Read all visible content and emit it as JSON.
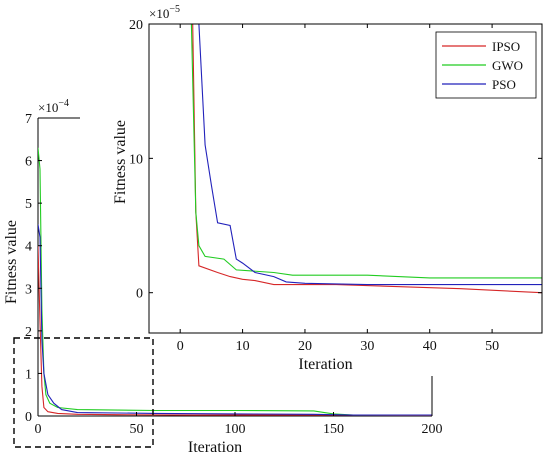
{
  "chart_data": [
    {
      "type": "line",
      "panel": "main",
      "xlabel": "Iteration",
      "ylabel": "Fitness value",
      "exponent_label": "×10",
      "exponent_power": "−4",
      "xlim": [
        0,
        200
      ],
      "ylim": [
        0,
        7
      ],
      "xticks": [
        0,
        50,
        100,
        150,
        200
      ],
      "yticks": [
        0,
        1,
        2,
        3,
        4,
        5,
        6,
        7
      ],
      "grid": false,
      "series": [
        {
          "name": "IPSO",
          "color": "#d62728",
          "x": [
            0,
            1,
            2,
            3,
            5,
            10,
            20,
            40,
            80,
            150,
            200
          ],
          "y": [
            4.0,
            2.2,
            0.7,
            0.2,
            0.1,
            0.06,
            0.04,
            0.03,
            0.02,
            0.02,
            0.01
          ]
        },
        {
          "name": "GWO",
          "color": "#22cc22",
          "x": [
            0,
            1,
            2,
            3,
            4,
            6,
            10,
            20,
            60,
            100,
            140,
            150,
            160,
            200
          ],
          "y": [
            6.3,
            5.8,
            2.5,
            1.0,
            0.5,
            0.3,
            0.2,
            0.15,
            0.13,
            0.13,
            0.12,
            0.05,
            0.02,
            0.02
          ]
        },
        {
          "name": "PSO",
          "color": "#2222bb",
          "x": [
            0,
            1,
            2,
            3,
            5,
            8,
            12,
            20,
            60,
            100,
            140,
            160,
            200
          ],
          "y": [
            4.5,
            4.2,
            1.8,
            1.0,
            0.5,
            0.3,
            0.15,
            0.08,
            0.06,
            0.05,
            0.04,
            0.02,
            0.02
          ]
        }
      ]
    },
    {
      "type": "line",
      "panel": "inset",
      "xlabel": "Iteration",
      "ylabel": "Fitness value",
      "exponent_label": "×10",
      "exponent_power": "−5",
      "xlim": [
        -5,
        58
      ],
      "ylim": [
        -3,
        20
      ],
      "xticks": [
        10,
        20,
        30,
        40,
        50
      ],
      "yticks": [
        0,
        10,
        20
      ],
      "extra_xtick": 0,
      "grid": false,
      "legend": "top-right",
      "series": [
        {
          "name": "IPSO",
          "color": "#d62728",
          "x": [
            2,
            2.5,
            3,
            6,
            8,
            10,
            12,
            15,
            25,
            45,
            58
          ],
          "y": [
            20,
            6,
            2.0,
            1.5,
            1.2,
            1.0,
            0.9,
            0.6,
            0.6,
            0.3,
            0.0
          ]
        },
        {
          "name": "GWO",
          "color": "#22cc22",
          "x": [
            1.8,
            2.5,
            3,
            4,
            7,
            9,
            15,
            18,
            30,
            40,
            58
          ],
          "y": [
            20,
            6,
            3.5,
            2.7,
            2.5,
            1.7,
            1.5,
            1.3,
            1.3,
            1.1,
            1.1
          ]
        },
        {
          "name": "PSO",
          "color": "#2222bb",
          "x": [
            3,
            4,
            5,
            6,
            8,
            9,
            10,
            12,
            15,
            17,
            20,
            30,
            58
          ],
          "y": [
            20,
            11,
            8,
            5.2,
            5.0,
            2.5,
            2.2,
            1.5,
            1.2,
            0.8,
            0.7,
            0.6,
            0.6
          ]
        }
      ]
    }
  ]
}
